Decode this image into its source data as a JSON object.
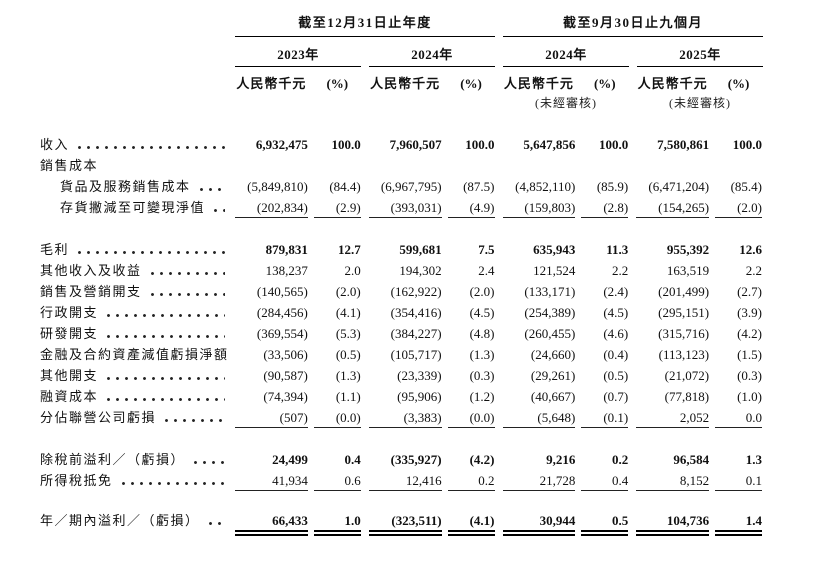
{
  "table": {
    "header": {
      "groups": [
        {
          "title": "截至12月31日止年度",
          "years": [
            "2023年",
            "2024年"
          ]
        },
        {
          "title": "截至9月30日止九個月",
          "years": [
            "2024年",
            "2025年"
          ]
        }
      ],
      "unit_label": "人民幣千元",
      "pct_label": "(%)",
      "unaudited_label": "(未經審核)"
    },
    "rows": [
      {
        "label": "收入",
        "leader": true,
        "bold_values": true,
        "underline": "none",
        "indent": false,
        "spacer_before": 0,
        "values": [
          "6,932,475",
          "100.0",
          "7,960,507",
          "100.0",
          "5,647,856",
          "100.0",
          "7,580,861",
          "100.0"
        ]
      },
      {
        "label": "銷售成本",
        "leader": false,
        "bold_values": false,
        "underline": "none",
        "indent": false,
        "spacer_before": 0,
        "values": [
          "",
          "",
          "",
          "",
          "",
          "",
          "",
          ""
        ]
      },
      {
        "label": "貨品及服務銷售成本",
        "leader": true,
        "bold_values": false,
        "underline": "none",
        "indent": true,
        "spacer_before": 0,
        "values": [
          "(5,849,810)",
          "(84.4)",
          "(6,967,795)",
          "(87.5)",
          "(4,852,110)",
          "(85.9)",
          "(6,471,204)",
          "(85.4)"
        ]
      },
      {
        "label": "存貨撇減至可變現淨值",
        "leader": true,
        "bold_values": false,
        "underline": "single",
        "indent": true,
        "spacer_before": 0,
        "values": [
          "(202,834)",
          "(2.9)",
          "(393,031)",
          "(4.9)",
          "(159,803)",
          "(2.8)",
          "(154,265)",
          "(2.0)"
        ]
      },
      {
        "label": "毛利",
        "leader": true,
        "bold_values": true,
        "underline": "none",
        "indent": false,
        "spacer_before": 20,
        "values": [
          "879,831",
          "12.7",
          "599,681",
          "7.5",
          "635,943",
          "11.3",
          "955,392",
          "12.6"
        ]
      },
      {
        "label": "其他收入及收益",
        "leader": true,
        "bold_values": false,
        "underline": "none",
        "indent": false,
        "spacer_before": 0,
        "values": [
          "138,237",
          "2.0",
          "194,302",
          "2.4",
          "121,524",
          "2.2",
          "163,519",
          "2.2"
        ]
      },
      {
        "label": "銷售及營銷開支",
        "leader": true,
        "bold_values": false,
        "underline": "none",
        "indent": false,
        "spacer_before": 0,
        "values": [
          "(140,565)",
          "(2.0)",
          "(162,922)",
          "(2.0)",
          "(133,171)",
          "(2.4)",
          "(201,499)",
          "(2.7)"
        ]
      },
      {
        "label": "行政開支",
        "leader": true,
        "bold_values": false,
        "underline": "none",
        "indent": false,
        "spacer_before": 0,
        "values": [
          "(284,456)",
          "(4.1)",
          "(354,416)",
          "(4.5)",
          "(254,389)",
          "(4.5)",
          "(295,151)",
          "(3.9)"
        ]
      },
      {
        "label": "研發開支",
        "leader": true,
        "bold_values": false,
        "underline": "none",
        "indent": false,
        "spacer_before": 0,
        "values": [
          "(369,554)",
          "(5.3)",
          "(384,227)",
          "(4.8)",
          "(260,455)",
          "(4.6)",
          "(315,716)",
          "(4.2)"
        ]
      },
      {
        "label": "金融及合約資產減值虧損淨額",
        "leader": false,
        "bold_values": false,
        "underline": "none",
        "indent": false,
        "spacer_before": 0,
        "values": [
          "(33,506)",
          "(0.5)",
          "(105,717)",
          "(1.3)",
          "(24,660)",
          "(0.4)",
          "(113,123)",
          "(1.5)"
        ]
      },
      {
        "label": "其他開支",
        "leader": true,
        "bold_values": false,
        "underline": "none",
        "indent": false,
        "spacer_before": 0,
        "values": [
          "(90,587)",
          "(1.3)",
          "(23,339)",
          "(0.3)",
          "(29,261)",
          "(0.5)",
          "(21,072)",
          "(0.3)"
        ]
      },
      {
        "label": "融資成本",
        "leader": true,
        "bold_values": false,
        "underline": "none",
        "indent": false,
        "spacer_before": 0,
        "values": [
          "(74,394)",
          "(1.1)",
          "(95,906)",
          "(1.2)",
          "(40,667)",
          "(0.7)",
          "(77,818)",
          "(1.0)"
        ]
      },
      {
        "label": "分佔聯營公司虧損",
        "leader": true,
        "bold_values": false,
        "underline": "single",
        "indent": false,
        "spacer_before": 0,
        "values": [
          "(507)",
          "(0.0)",
          "(3,383)",
          "(0.0)",
          "(5,648)",
          "(0.1)",
          "2,052",
          "0.0"
        ]
      },
      {
        "label": "除稅前溢利／（虧損）",
        "leader": true,
        "bold_values": true,
        "underline": "none",
        "indent": false,
        "spacer_before": 20,
        "values": [
          "24,499",
          "0.4",
          "(335,927)",
          "(4.2)",
          "9,216",
          "0.2",
          "96,584",
          "1.3"
        ]
      },
      {
        "label": "所得稅抵免",
        "leader": true,
        "bold_values": false,
        "underline": "single",
        "indent": false,
        "spacer_before": 0,
        "values": [
          "41,934",
          "0.6",
          "12,416",
          "0.2",
          "21,728",
          "0.4",
          "8,152",
          "0.1"
        ]
      },
      {
        "label": "年／期內溢利／（虧損）",
        "leader": true,
        "bold_values": true,
        "underline": "double",
        "indent": false,
        "spacer_before": 18,
        "values": [
          "66,433",
          "1.0",
          "(323,511)",
          "(4.1)",
          "30,944",
          "0.5",
          "104,736",
          "1.4"
        ]
      }
    ]
  }
}
